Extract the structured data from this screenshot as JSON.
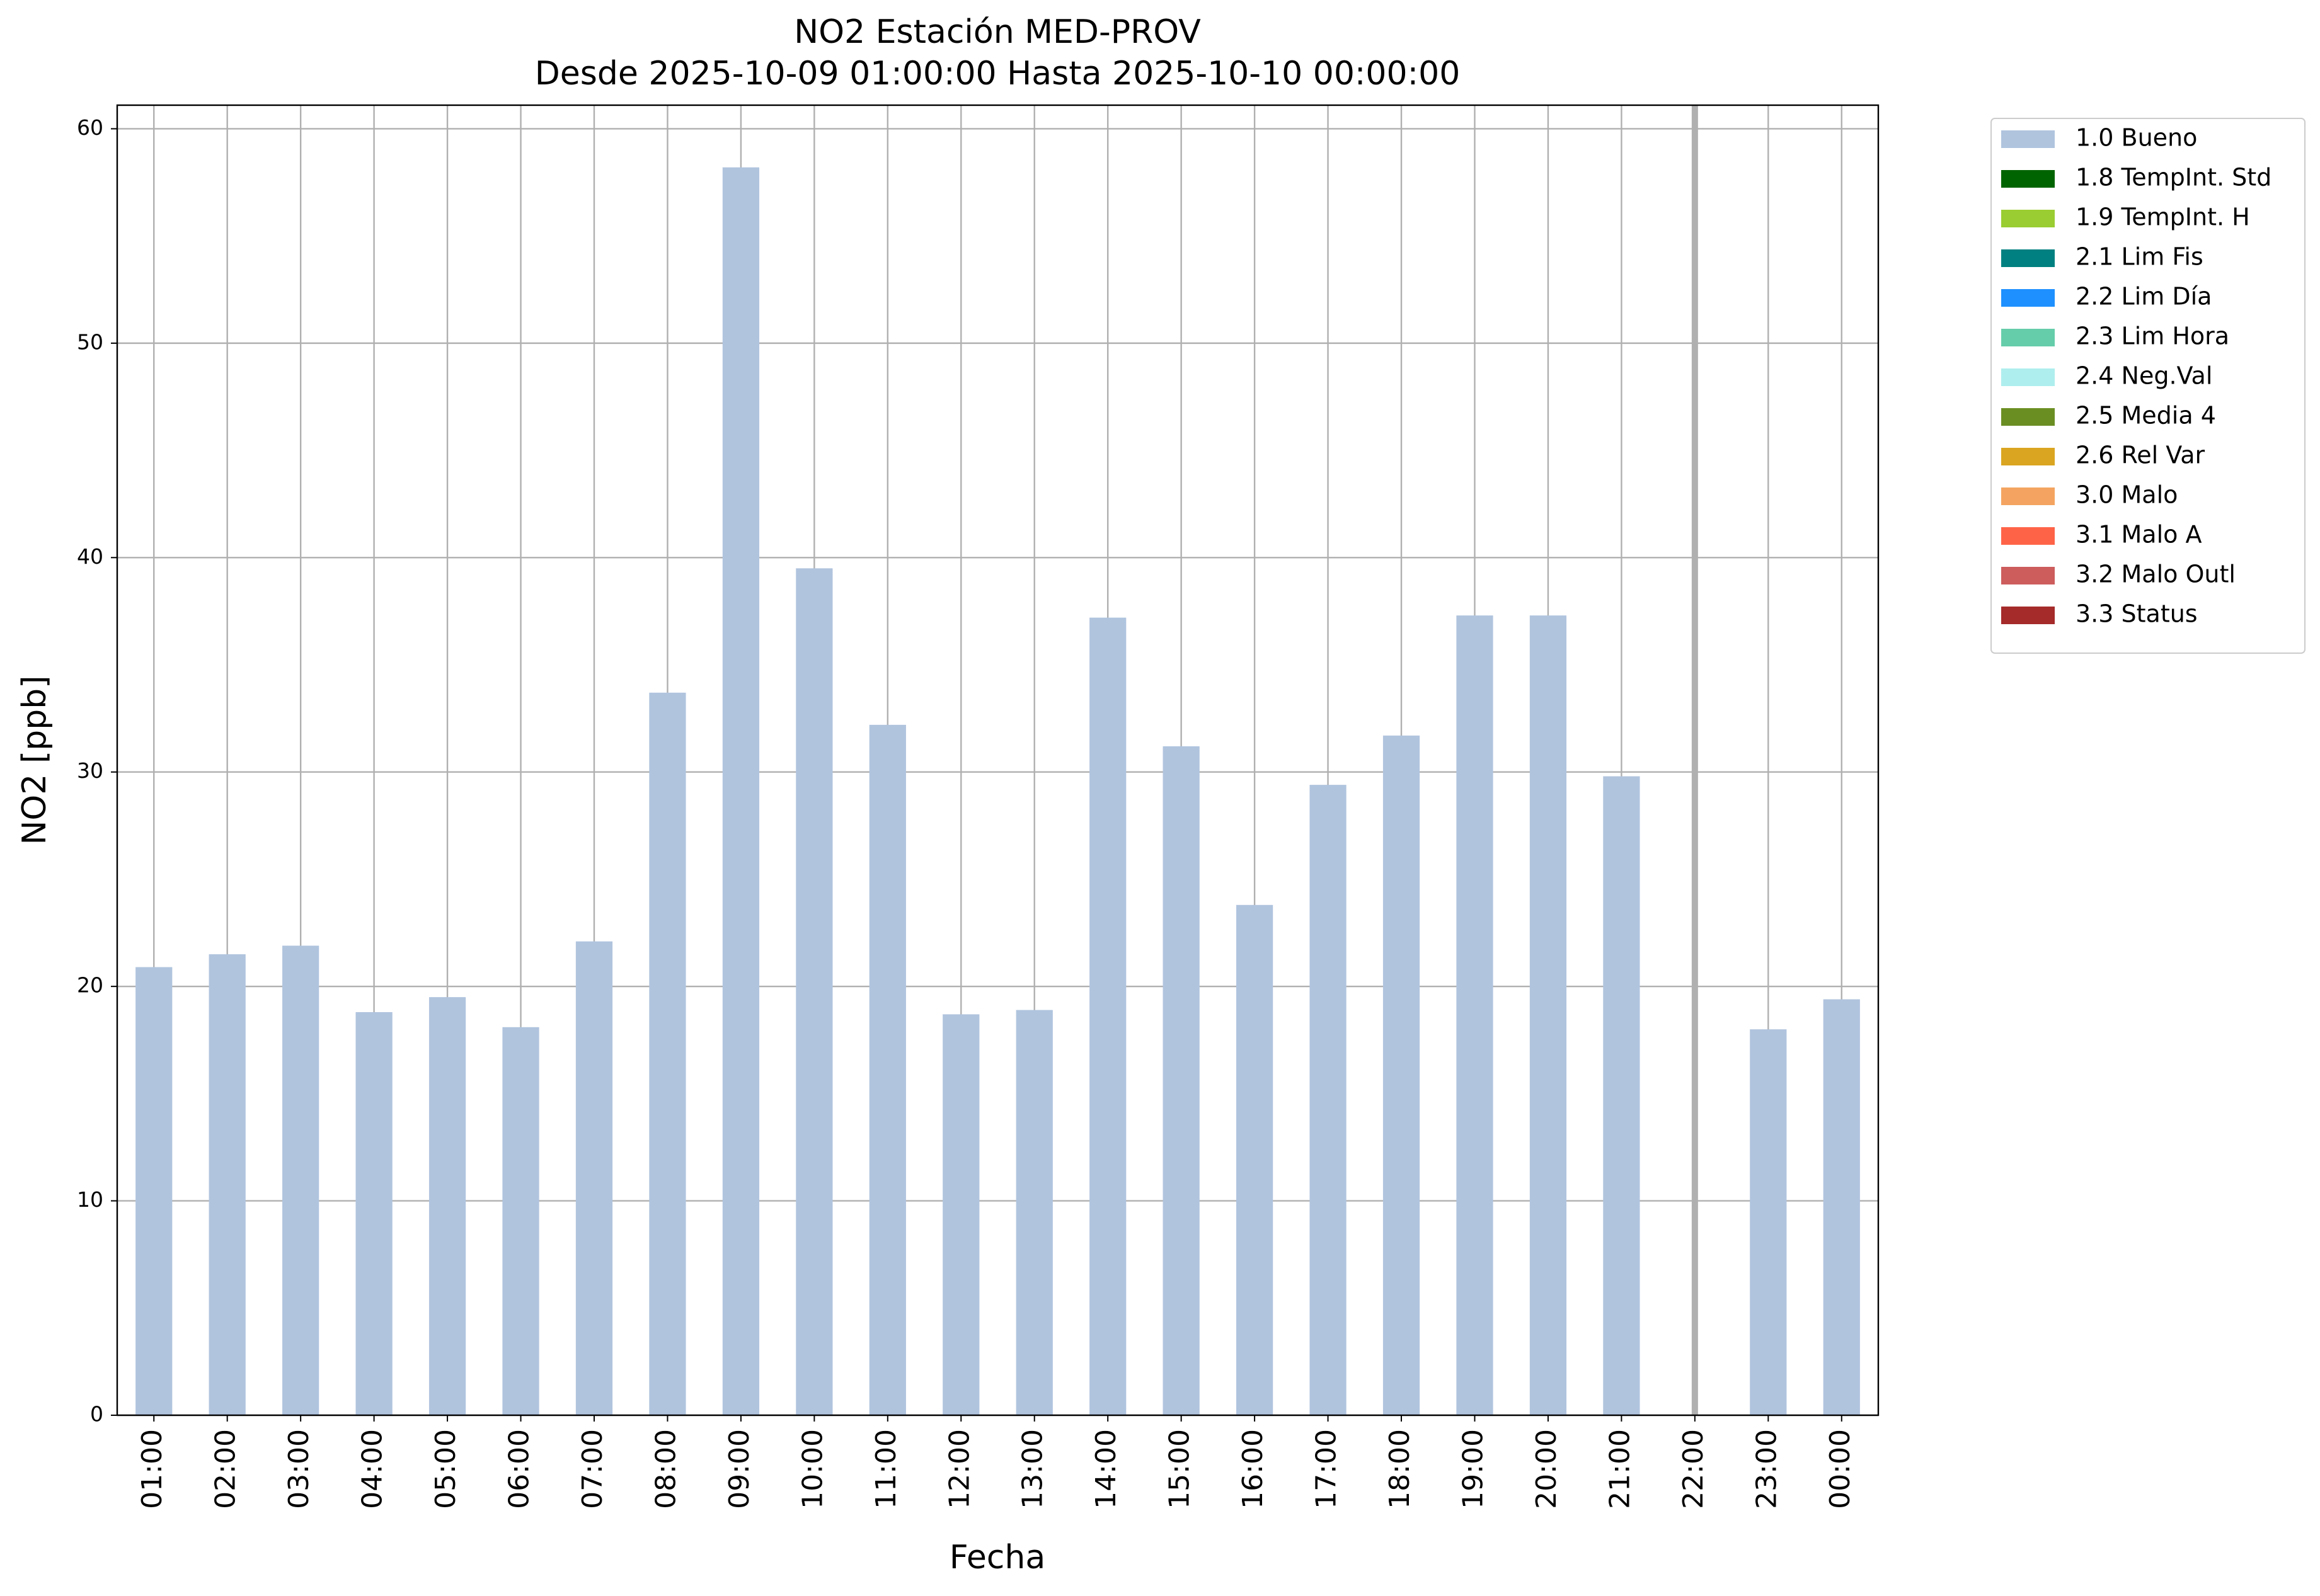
{
  "chart_data": {
    "type": "bar",
    "title": "NO2 Estación MED-PROV",
    "subtitle": "Desde 2025-10-09 01:00:00 Hasta 2025-10-10 00:00:00",
    "x_label": "Fecha",
    "y_label": "NO2 [ppb]",
    "categories": [
      "01:00",
      "02:00",
      "03:00",
      "04:00",
      "05:00",
      "06:00",
      "07:00",
      "08:00",
      "09:00",
      "10:00",
      "11:00",
      "12:00",
      "13:00",
      "14:00",
      "15:00",
      "16:00",
      "17:00",
      "18:00",
      "19:00",
      "20:00",
      "21:00",
      "22:00",
      "23:00",
      "00:00"
    ],
    "series": [
      {
        "name": "1.0 Bueno",
        "color": "#b0c4de",
        "values": [
          20.9,
          21.5,
          21.9,
          18.8,
          19.5,
          18.1,
          22.1,
          33.7,
          58.2,
          39.5,
          32.2,
          18.7,
          18.9,
          37.2,
          31.2,
          23.8,
          29.4,
          31.7,
          37.3,
          37.3,
          29.8,
          null,
          18.0,
          19.4
        ]
      },
      {
        "name": "1.8 TempInt. Std",
        "color": "#006400"
      },
      {
        "name": "1.9 TempInt. H",
        "color": "#9acd32"
      },
      {
        "name": "2.1 Lim Fis",
        "color": "#008080"
      },
      {
        "name": "2.2 Lim Día",
        "color": "#1e90ff"
      },
      {
        "name": "2.3 Lim Hora",
        "color": "#66cdaa"
      },
      {
        "name": "2.4 Neg.Val",
        "color": "#afeeee"
      },
      {
        "name": "2.5 Media 4",
        "color": "#6b8e23"
      },
      {
        "name": "2.6 Rel Var",
        "color": "#daa520"
      },
      {
        "name": "3.0 Malo",
        "color": "#f4a460"
      },
      {
        "name": "3.1 Malo A",
        "color": "#ff6347"
      },
      {
        "name": "3.2 Malo Outl",
        "color": "#cd5c5c"
      },
      {
        "name": "3.3 Status",
        "color": "#a52a2a"
      }
    ],
    "ylim": [
      0,
      61.1
    ],
    "yticks": [
      0,
      10,
      20,
      30,
      40,
      50,
      60
    ],
    "grid": true,
    "legend": "outside-upper-right"
  }
}
